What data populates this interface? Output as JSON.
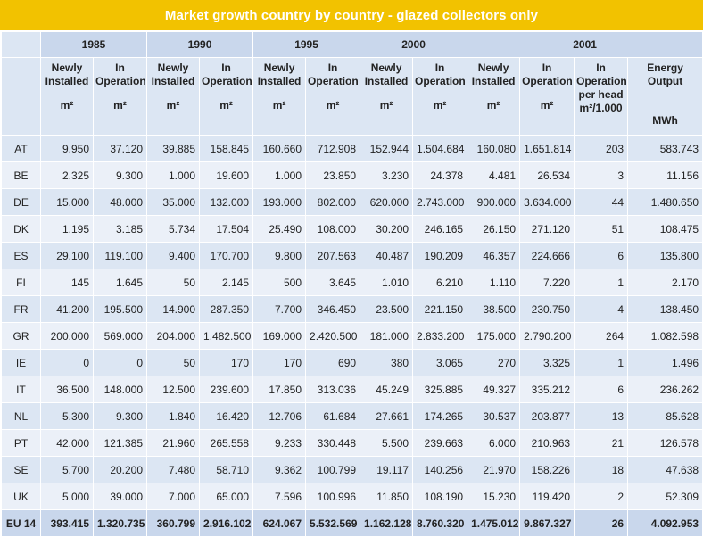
{
  "title": "Market growth country by country - glazed collectors only",
  "years": [
    "1985",
    "1990",
    "1995",
    "2000",
    "2001"
  ],
  "headers": {
    "newly": [
      "Newly",
      "Installed"
    ],
    "in_op": [
      "In",
      "Operation"
    ],
    "per_head": [
      "In",
      "Operation",
      "per head"
    ],
    "energy": [
      "Energy Output"
    ],
    "unit_m2": "m²",
    "unit_per_head": "m²/1.000",
    "unit_mwh": "MWh"
  },
  "rows": [
    {
      "code": "AT",
      "values": [
        "9.950",
        "37.120",
        "39.885",
        "158.845",
        "160.660",
        "712.908",
        "152.944",
        "1.504.684",
        "160.080",
        "1.651.814",
        "203",
        "583.743"
      ]
    },
    {
      "code": "BE",
      "values": [
        "2.325",
        "9.300",
        "1.000",
        "19.600",
        "1.000",
        "23.850",
        "3.230",
        "24.378",
        "4.481",
        "26.534",
        "3",
        "11.156"
      ]
    },
    {
      "code": "DE",
      "values": [
        "15.000",
        "48.000",
        "35.000",
        "132.000",
        "193.000",
        "802.000",
        "620.000",
        "2.743.000",
        "900.000",
        "3.634.000",
        "44",
        "1.480.650"
      ]
    },
    {
      "code": "DK",
      "values": [
        "1.195",
        "3.185",
        "5.734",
        "17.504",
        "25.490",
        "108.000",
        "30.200",
        "246.165",
        "26.150",
        "271.120",
        "51",
        "108.475"
      ]
    },
    {
      "code": "ES",
      "values": [
        "29.100",
        "119.100",
        "9.400",
        "170.700",
        "9.800",
        "207.563",
        "40.487",
        "190.209",
        "46.357",
        "224.666",
        "6",
        "135.800"
      ]
    },
    {
      "code": "FI",
      "values": [
        "145",
        "1.645",
        "50",
        "2.145",
        "500",
        "3.645",
        "1.010",
        "6.210",
        "1.110",
        "7.220",
        "1",
        "2.170"
      ]
    },
    {
      "code": "FR",
      "values": [
        "41.200",
        "195.500",
        "14.900",
        "287.350",
        "7.700",
        "346.450",
        "23.500",
        "221.150",
        "38.500",
        "230.750",
        "4",
        "138.450"
      ]
    },
    {
      "code": "GR",
      "values": [
        "200.000",
        "569.000",
        "204.000",
        "1.482.500",
        "169.000",
        "2.420.500",
        "181.000",
        "2.833.200",
        "175.000",
        "2.790.200",
        "264",
        "1.082.598"
      ]
    },
    {
      "code": "IE",
      "values": [
        "0",
        "0",
        "50",
        "170",
        "170",
        "690",
        "380",
        "3.065",
        "270",
        "3.325",
        "1",
        "1.496"
      ]
    },
    {
      "code": "IT",
      "values": [
        "36.500",
        "148.000",
        "12.500",
        "239.600",
        "17.850",
        "313.036",
        "45.249",
        "325.885",
        "49.327",
        "335.212",
        "6",
        "236.262"
      ]
    },
    {
      "code": "NL",
      "values": [
        "5.300",
        "9.300",
        "1.840",
        "16.420",
        "12.706",
        "61.684",
        "27.661",
        "174.265",
        "30.537",
        "203.877",
        "13",
        "85.628"
      ]
    },
    {
      "code": "PT",
      "values": [
        "42.000",
        "121.385",
        "21.960",
        "265.558",
        "9.233",
        "330.448",
        "5.500",
        "239.663",
        "6.000",
        "210.963",
        "21",
        "126.578"
      ]
    },
    {
      "code": "SE",
      "values": [
        "5.700",
        "20.200",
        "7.480",
        "58.710",
        "9.362",
        "100.799",
        "19.117",
        "140.256",
        "21.970",
        "158.226",
        "18",
        "47.638"
      ]
    },
    {
      "code": "UK",
      "values": [
        "5.000",
        "39.000",
        "7.000",
        "65.000",
        "7.596",
        "100.996",
        "11.850",
        "108.190",
        "15.230",
        "119.420",
        "2",
        "52.309"
      ]
    }
  ],
  "total": {
    "code": "EU 14",
    "values": [
      "393.415",
      "1.320.735",
      "360.799",
      "2.916.102",
      "624.067",
      "5.532.569",
      "1.162.128",
      "8.760.320",
      "1.475.012",
      "9.867.327",
      "26",
      "4.092.953"
    ]
  },
  "colors": {
    "title_bar": "#f2c200",
    "header_dark": "#c9d7ec",
    "header_light": "#dce6f3",
    "row_alt": "#ebf0f8"
  }
}
